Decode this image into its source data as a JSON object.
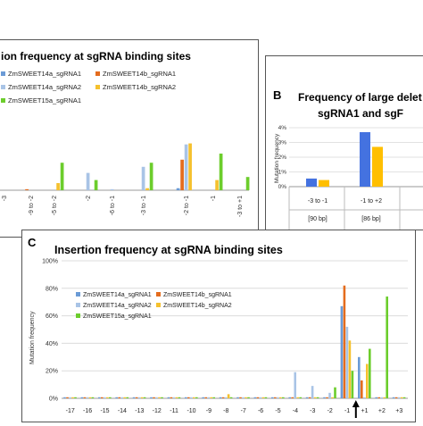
{
  "panels": {
    "A": {
      "title": "ion frequency at sgRNA binding sites"
    },
    "B": {
      "label": "B",
      "title_line1": "Frequency of large delet",
      "title_line2": "sgRNA1 and sgF"
    },
    "C": {
      "label": "C",
      "title": "Insertion frequency at sgRNA binding sites"
    }
  },
  "colors": {
    "ZmSWEET14a_sgRNA1": "#6b9bd6",
    "ZmSWEET14b_sgRNA1": "#e46c1e",
    "ZmSWEET14a_sgRNA2": "#a9c4e6",
    "ZmSWEET14b_sgRNA2": "#f5c12e",
    "ZmSWEET15a_sgRNA1": "#6ccd2c",
    "B_blue": "#4472e0",
    "B_yellow": "#ffbf00"
  },
  "chart_data": [
    {
      "panel": "A",
      "type": "bar",
      "title": "ion frequency at sgRNA binding sites",
      "legend": [
        "ZmSWEET14a_sgRNA1",
        "ZmSWEET14b_sgRNA1",
        "ZmSWEET14a_sgRNA2",
        "ZmSWEET14b_sgRNA2",
        "ZmSWEET15a_sgRNA1"
      ],
      "categories": [
        "-3",
        "-9 to -2",
        "-5 to -2",
        "-2",
        "-6 to -1",
        "-3 to -1",
        "-2 to -1",
        "-1",
        "-3 to +1"
      ],
      "series": [
        {
          "name": "ZmSWEET14a_sgRNA1",
          "values": [
            0,
            0,
            0,
            0,
            0,
            0,
            2,
            0,
            0
          ]
        },
        {
          "name": "ZmSWEET14b_sgRNA1",
          "values": [
            0,
            1,
            0,
            0,
            0,
            0,
            30,
            0,
            0
          ]
        },
        {
          "name": "ZmSWEET14a_sgRNA2",
          "values": [
            0,
            0,
            0,
            17,
            1,
            23,
            45,
            0,
            0
          ]
        },
        {
          "name": "ZmSWEET14b_sgRNA2",
          "values": [
            0,
            0,
            7,
            0,
            0,
            2,
            46,
            10,
            0
          ]
        },
        {
          "name": "ZmSWEET15a_sgRNA1",
          "values": [
            0,
            0,
            27,
            10,
            0,
            27,
            0,
            36,
            13
          ]
        }
      ]
    },
    {
      "panel": "B",
      "type": "bar",
      "title": "Frequency of large delet sgRNA1 and sgF",
      "ylabel": "Mutation frequency",
      "ylim": [
        0,
        4
      ],
      "yticks": [
        "0%",
        "1%",
        "2%",
        "3%",
        "4%"
      ],
      "categories": [
        "-3 to -1",
        "-1 to +2"
      ],
      "sublabels": [
        "[90 bp]",
        "[86 bp]"
      ],
      "series": [
        {
          "values": [
            0.55,
            3.7
          ]
        },
        {
          "values": [
            0.45,
            2.7
          ]
        }
      ]
    },
    {
      "panel": "C",
      "type": "bar",
      "title": "Insertion frequency at sgRNA binding sites",
      "ylabel": "Mutation frequency",
      "ylim": [
        0,
        100
      ],
      "yticks": [
        "0%",
        "20%",
        "40%",
        "60%",
        "80%",
        "100%"
      ],
      "legend": [
        "ZmSWEET14a_sgRNA1",
        "ZmSWEET14b_sgRNA1",
        "ZmSWEET14a_sgRNA2",
        "ZmSWEET14b_sgRNA2",
        "ZmSWEET15a_sgRNA1"
      ],
      "categories": [
        "-17",
        "-16",
        "-15",
        "-14",
        "-13",
        "-12",
        "-11",
        "-10",
        "-9",
        "-8",
        "-7",
        "-6",
        "-5",
        "-4",
        "-3",
        "-2",
        "-1",
        "+1",
        "+2",
        "+3"
      ],
      "series": [
        {
          "name": "ZmSWEET14a_sgRNA1",
          "values": [
            0,
            0,
            0,
            0,
            0,
            0,
            0,
            0,
            0,
            0,
            0,
            0,
            0,
            0,
            0,
            0,
            67,
            30,
            0,
            0
          ]
        },
        {
          "name": "ZmSWEET14b_sgRNA1",
          "values": [
            0,
            0,
            0,
            0,
            0,
            0,
            0,
            0,
            0,
            0,
            0,
            0,
            0,
            0,
            0,
            0,
            82,
            13,
            0,
            0
          ]
        },
        {
          "name": "ZmSWEET14a_sgRNA2",
          "values": [
            0,
            0,
            0,
            0,
            0,
            0,
            0,
            0,
            0,
            0,
            0,
            0,
            0,
            19,
            9,
            4,
            52,
            0,
            0,
            0
          ]
        },
        {
          "name": "ZmSWEET14b_sgRNA2",
          "values": [
            0,
            0,
            0,
            0,
            0,
            0,
            0,
            0,
            0,
            3,
            0,
            0,
            0,
            0,
            0,
            0,
            42,
            25,
            0,
            0
          ]
        },
        {
          "name": "ZmSWEET15a_sgRNA1",
          "values": [
            0,
            0,
            0,
            0,
            0,
            0,
            0,
            0,
            0,
            0,
            0,
            0,
            0,
            0,
            0,
            8,
            20,
            36,
            74,
            0
          ]
        }
      ],
      "annotation": "arrow between -1 and +1"
    }
  ]
}
